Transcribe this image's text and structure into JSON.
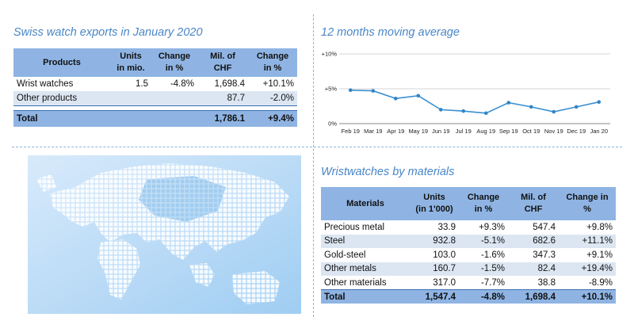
{
  "exports": {
    "title": "Swiss watch exports in January 2020",
    "headers": [
      "Products",
      "Units\nin mio.",
      "Change\nin %",
      "Mil. of\nCHF",
      "Change\nin %"
    ],
    "rows": [
      {
        "product": "Wrist watches",
        "units": "1.5",
        "change_units": "-4.8%",
        "chf": "1,698.4",
        "change_chf": "+10.1%"
      },
      {
        "product": "Other products",
        "units": "",
        "change_units": "",
        "chf": "87.7",
        "change_chf": "-2.0%"
      }
    ],
    "total": {
      "product": "Total",
      "units": "",
      "change_units": "",
      "chf": "1,786.1",
      "change_chf": "+9.4%"
    }
  },
  "moving_average": {
    "title": "12 months moving average"
  },
  "materials": {
    "title": "Wristwatches by materials",
    "headers": [
      "Materials",
      "Units\n(in 1'000)",
      "Change\nin %",
      "Mil. of\nCHF",
      "Change in\n%"
    ],
    "rows": [
      {
        "material": "Precious metal",
        "units": "33.9",
        "change_units": "+9.3%",
        "chf": "547.4",
        "change_chf": "+9.8%"
      },
      {
        "material": "Steel",
        "units": "932.8",
        "change_units": "-5.1%",
        "chf": "682.6",
        "change_chf": "+11.1%"
      },
      {
        "material": "Gold-steel",
        "units": "103.0",
        "change_units": "-1.6%",
        "chf": "347.3",
        "change_chf": "+9.1%"
      },
      {
        "material": "Other metals",
        "units": "160.7",
        "change_units": "-1.5%",
        "chf": "82.4",
        "change_chf": "+19.4%"
      },
      {
        "material": "Other materials",
        "units": "317.0",
        "change_units": "-7.7%",
        "chf": "38.8",
        "change_chf": "-8.9%"
      }
    ],
    "total": {
      "material": "Total",
      "units": "1,547.4",
      "change_units": "-4.8%",
      "chf": "1,698.4",
      "change_chf": "+10.1%"
    }
  },
  "colors": {
    "accent": "#4a86c6",
    "header_fill": "#8fb4e3",
    "alt_row": "#dce6f2",
    "line": "#3a8fcf",
    "map": "#5fa8e0"
  },
  "chart_data": {
    "type": "line",
    "title": "12 months moving average",
    "x": [
      "Feb 19",
      "Mar 19",
      "Apr 19",
      "May 19",
      "Jun 19",
      "Jul 19",
      "Aug 19",
      "Sep 19",
      "Oct 19",
      "Nov 19",
      "Dec 19",
      "Jan 20"
    ],
    "series": [
      {
        "values": [
          4.8,
          4.7,
          3.6,
          4.0,
          2.0,
          1.8,
          1.5,
          3.0,
          2.4,
          1.7,
          2.4,
          3.1
        ]
      }
    ],
    "yticks": [
      "0%",
      "+5%",
      "+10%"
    ],
    "ylim": [
      0,
      10
    ],
    "grid": "horizontal"
  }
}
